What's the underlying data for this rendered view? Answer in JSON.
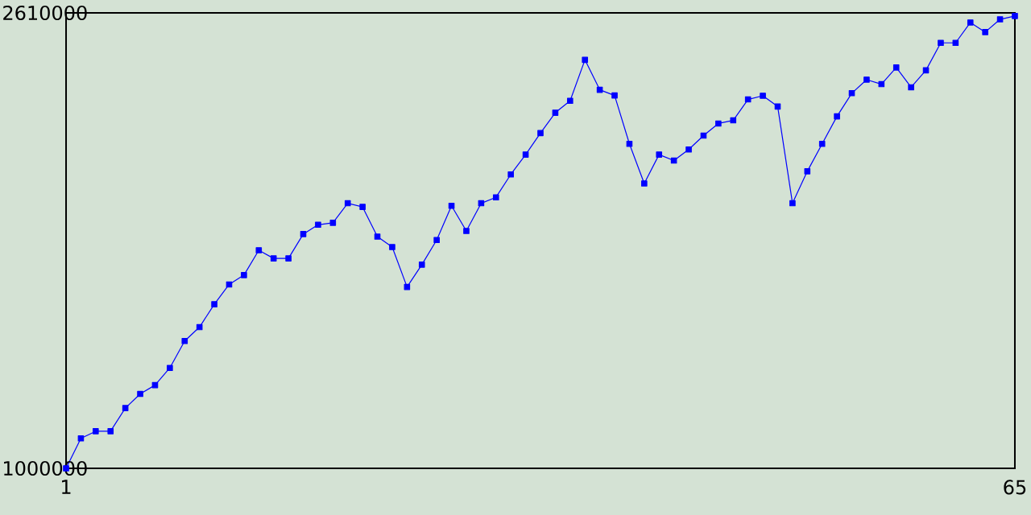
{
  "chart_data": {
    "type": "line",
    "x": [
      1,
      2,
      3,
      4,
      5,
      6,
      7,
      8,
      9,
      10,
      11,
      12,
      13,
      14,
      15,
      16,
      17,
      18,
      19,
      20,
      21,
      22,
      23,
      24,
      25,
      26,
      27,
      28,
      29,
      30,
      31,
      32,
      33,
      34,
      35,
      36,
      37,
      38,
      39,
      40,
      41,
      42,
      43,
      44,
      45,
      46,
      47,
      48,
      49,
      50,
      51,
      52,
      53,
      54,
      55,
      56,
      57,
      58,
      59,
      60,
      61,
      62,
      63,
      64,
      65
    ],
    "series": [
      {
        "color": "#0000ff",
        "values": [
          1000000,
          1106000,
          1131000,
          1131000,
          1213000,
          1263000,
          1294000,
          1355000,
          1450000,
          1499000,
          1580000,
          1650000,
          1683000,
          1771000,
          1742000,
          1742000,
          1828000,
          1861000,
          1868000,
          1937000,
          1924000,
          1819000,
          1782000,
          1641000,
          1720000,
          1807000,
          1928000,
          1839000,
          1937000,
          1958000,
          2039000,
          2109000,
          2185000,
          2257000,
          2299000,
          2444000,
          2338000,
          2318000,
          2147000,
          2007000,
          2109000,
          2088000,
          2127000,
          2176000,
          2219000,
          2230000,
          2304000,
          2317000,
          2279000,
          1937000,
          2050000,
          2147000,
          2244000,
          2326000,
          2374000,
          2358000,
          2417000,
          2347000,
          2407000,
          2504000,
          2504000,
          2576000,
          2542000,
          2587000,
          2599000
        ]
      }
    ],
    "xlim": [
      1,
      65
    ],
    "xticks": [
      1,
      65
    ],
    "ylim": [
      1000000,
      2610000
    ],
    "yticks": [
      1000000,
      2610000
    ],
    "marker": "square",
    "line_style": "solid"
  }
}
